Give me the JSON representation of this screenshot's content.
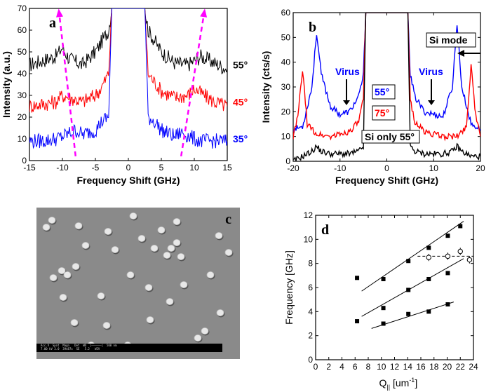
{
  "panels": {
    "a": {
      "letter": "a",
      "xlabel": "Frequency Shift (GHz)",
      "ylabel": "Intensity (a.u.)",
      "x_ticks": [
        "-15",
        "-10",
        "-5",
        "0",
        "5",
        "10",
        "15"
      ],
      "y_ticks": [
        "0",
        "10",
        "20",
        "30",
        "40",
        "50",
        "60",
        "70"
      ],
      "series_labels": [
        {
          "text": "55°",
          "color": "#000000"
        },
        {
          "text": "45°",
          "color": "#ff0000"
        },
        {
          "text": "35°",
          "color": "#0000ff"
        }
      ]
    },
    "b": {
      "letter": "b",
      "xlabel": "Frequency Shift (GHz)",
      "ylabel": "Intensity (cts/s)",
      "x_ticks": [
        "-20",
        "-10",
        "0",
        "10",
        "20"
      ],
      "y_ticks": [
        "0",
        "10",
        "20",
        "30",
        "40",
        "50",
        "60"
      ],
      "label_virus_left": "Virus",
      "label_virus_right": "Virus",
      "label_55": "55°",
      "label_75": "75°",
      "label_si_only": "Si only 55°",
      "label_si_mode": "Si mode"
    },
    "c": {
      "letter": "c",
      "info_line1": "Acc.V  Spot  Magn   Det  WD  |——————|  500 nm",
      "info_line2": "7.00 kV 3.0  39487x  SE   5.2   WIV"
    },
    "d": {
      "letter": "d",
      "xlabel": "Q",
      "xlabel_sub": "||",
      "xlabel_unit_pre": " [um",
      "xlabel_sup": "-1",
      "xlabel_unit_post": "]",
      "ylabel": "Frequency [GHz]",
      "x_ticks": [
        "0",
        "2",
        "4",
        "6",
        "8",
        "10",
        "12",
        "14",
        "16",
        "18",
        "20",
        "22",
        "24"
      ],
      "y_ticks": [
        "0",
        "2",
        "4",
        "6",
        "8",
        "10",
        "12"
      ]
    }
  },
  "chart_data": [
    {
      "type": "line",
      "panel": "a",
      "xlim": [
        -15,
        15
      ],
      "ylim": [
        0,
        70
      ],
      "series": [
        {
          "name": "55°",
          "color": "#000000",
          "x": [
            -15,
            -13,
            -11,
            -10,
            -9,
            -7,
            -5,
            -4,
            -3,
            -2.5,
            -2,
            2,
            2.5,
            3,
            4,
            5,
            7,
            9,
            10,
            11,
            13,
            15
          ],
          "y": [
            44,
            46,
            48,
            52,
            47,
            44,
            50,
            55,
            60,
            70,
            70,
            70,
            70,
            60,
            55,
            50,
            45,
            44,
            46,
            48,
            45,
            42
          ]
        },
        {
          "name": "45°",
          "color": "#ff0000",
          "x": [
            -15,
            -13,
            -11,
            -10,
            -9,
            -7,
            -5,
            -4,
            -3,
            -2.5,
            -2,
            2,
            2.5,
            3,
            4,
            5,
            7,
            9,
            10,
            11,
            13,
            15
          ],
          "y": [
            25,
            26,
            27,
            30,
            29,
            27,
            30,
            34,
            40,
            70,
            70,
            70,
            70,
            40,
            36,
            32,
            29,
            30,
            33,
            31,
            27,
            25
          ]
        },
        {
          "name": "35°",
          "color": "#0000ff",
          "x": [
            -15,
            -13,
            -11,
            -10,
            -8,
            -7,
            -5,
            -4,
            -3,
            -2.5,
            -2,
            2,
            2.5,
            3,
            4,
            5,
            7,
            8,
            10,
            11,
            13,
            15
          ],
          "y": [
            9,
            9,
            10,
            11,
            14,
            12,
            14,
            18,
            20,
            70,
            70,
            70,
            70,
            20,
            18,
            14,
            11,
            13,
            10,
            9,
            9,
            9
          ]
        }
      ],
      "annotations": [
        {
          "type": "dashed-arrow",
          "color": "#ff00ff",
          "x": [
            -8,
            -10.5
          ],
          "y": [
            2,
            68
          ]
        },
        {
          "type": "dashed-arrow",
          "color": "#ff00ff",
          "x": [
            8,
            11.5
          ],
          "y": [
            2,
            68
          ]
        }
      ]
    },
    {
      "type": "line",
      "panel": "b",
      "xlim": [
        -20,
        20
      ],
      "ylim": [
        0,
        60
      ],
      "series": [
        {
          "name": "55°",
          "color": "#0000ff",
          "x": [
            -20,
            -18,
            -16,
            -15,
            -14,
            -12,
            -10,
            -8,
            -6,
            -5,
            -4.5,
            4.5,
            5,
            6,
            8,
            10,
            12,
            14,
            15,
            16,
            18,
            20
          ],
          "y": [
            13,
            14,
            30,
            52,
            35,
            22,
            19,
            20,
            26,
            35,
            60,
            60,
            35,
            26,
            20,
            19,
            18,
            30,
            56,
            30,
            15,
            13
          ]
        },
        {
          "name": "75°",
          "color": "#ff0000",
          "x": [
            -20,
            -19,
            -18,
            -17,
            -15,
            -12,
            -10,
            -8,
            -6,
            -5,
            -4.5,
            4.5,
            5,
            6,
            8,
            10,
            12,
            15,
            17,
            18,
            19,
            20
          ],
          "y": [
            10,
            18,
            37,
            15,
            11,
            10,
            11,
            12,
            16,
            25,
            60,
            60,
            25,
            16,
            12,
            11,
            10,
            10,
            14,
            39,
            18,
            10
          ]
        },
        {
          "name": "Si only 55°",
          "color": "#000000",
          "x": [
            -20,
            -18,
            -16,
            -15,
            -14,
            -12,
            -10,
            -8,
            -6,
            -5,
            -4.5,
            4.5,
            5,
            6,
            8,
            10,
            12,
            14,
            15,
            16,
            18,
            20
          ],
          "y": [
            0,
            2,
            4,
            6,
            4,
            3,
            3,
            3,
            4,
            6,
            60,
            60,
            6,
            4,
            3,
            3,
            3,
            4,
            6,
            4,
            2,
            2
          ]
        }
      ]
    },
    {
      "type": "scatter",
      "panel": "d",
      "xlim": [
        0,
        24
      ],
      "ylim": [
        0,
        12
      ],
      "series": [
        {
          "marker": "filled-square",
          "x": [
            6.3,
            10.3,
            14.1,
            17.2,
            20.1,
            22.0,
            6.3,
            10.3,
            14.1,
            17.2,
            20.1,
            10.3,
            14.1,
            17.2,
            20.1
          ],
          "y": [
            6.8,
            6.7,
            8.2,
            9.3,
            10.3,
            11.1,
            3.2,
            4.3,
            5.8,
            6.7,
            7.2,
            3.0,
            3.8,
            4.0,
            4.6
          ]
        },
        {
          "marker": "open-circle",
          "x": [
            17.2,
            20.1,
            22.0,
            23.4
          ],
          "y": [
            8.5,
            8.6,
            9.0,
            8.3
          ],
          "yerr": [
            0.3,
            0.3,
            0.3,
            0.3
          ]
        }
      ],
      "fit_lines": [
        {
          "style": "solid",
          "x": [
            7.0,
            22.5
          ],
          "y": [
            5.7,
            11.5
          ]
        },
        {
          "style": "solid",
          "x": [
            7.0,
            22.5
          ],
          "y": [
            3.6,
            8.4
          ]
        },
        {
          "style": "solid",
          "x": [
            8.5,
            21.0
          ],
          "y": [
            2.6,
            4.8
          ]
        },
        {
          "style": "dashed",
          "x": [
            15.5,
            24.0
          ],
          "y": [
            8.6,
            8.6
          ]
        }
      ]
    }
  ]
}
